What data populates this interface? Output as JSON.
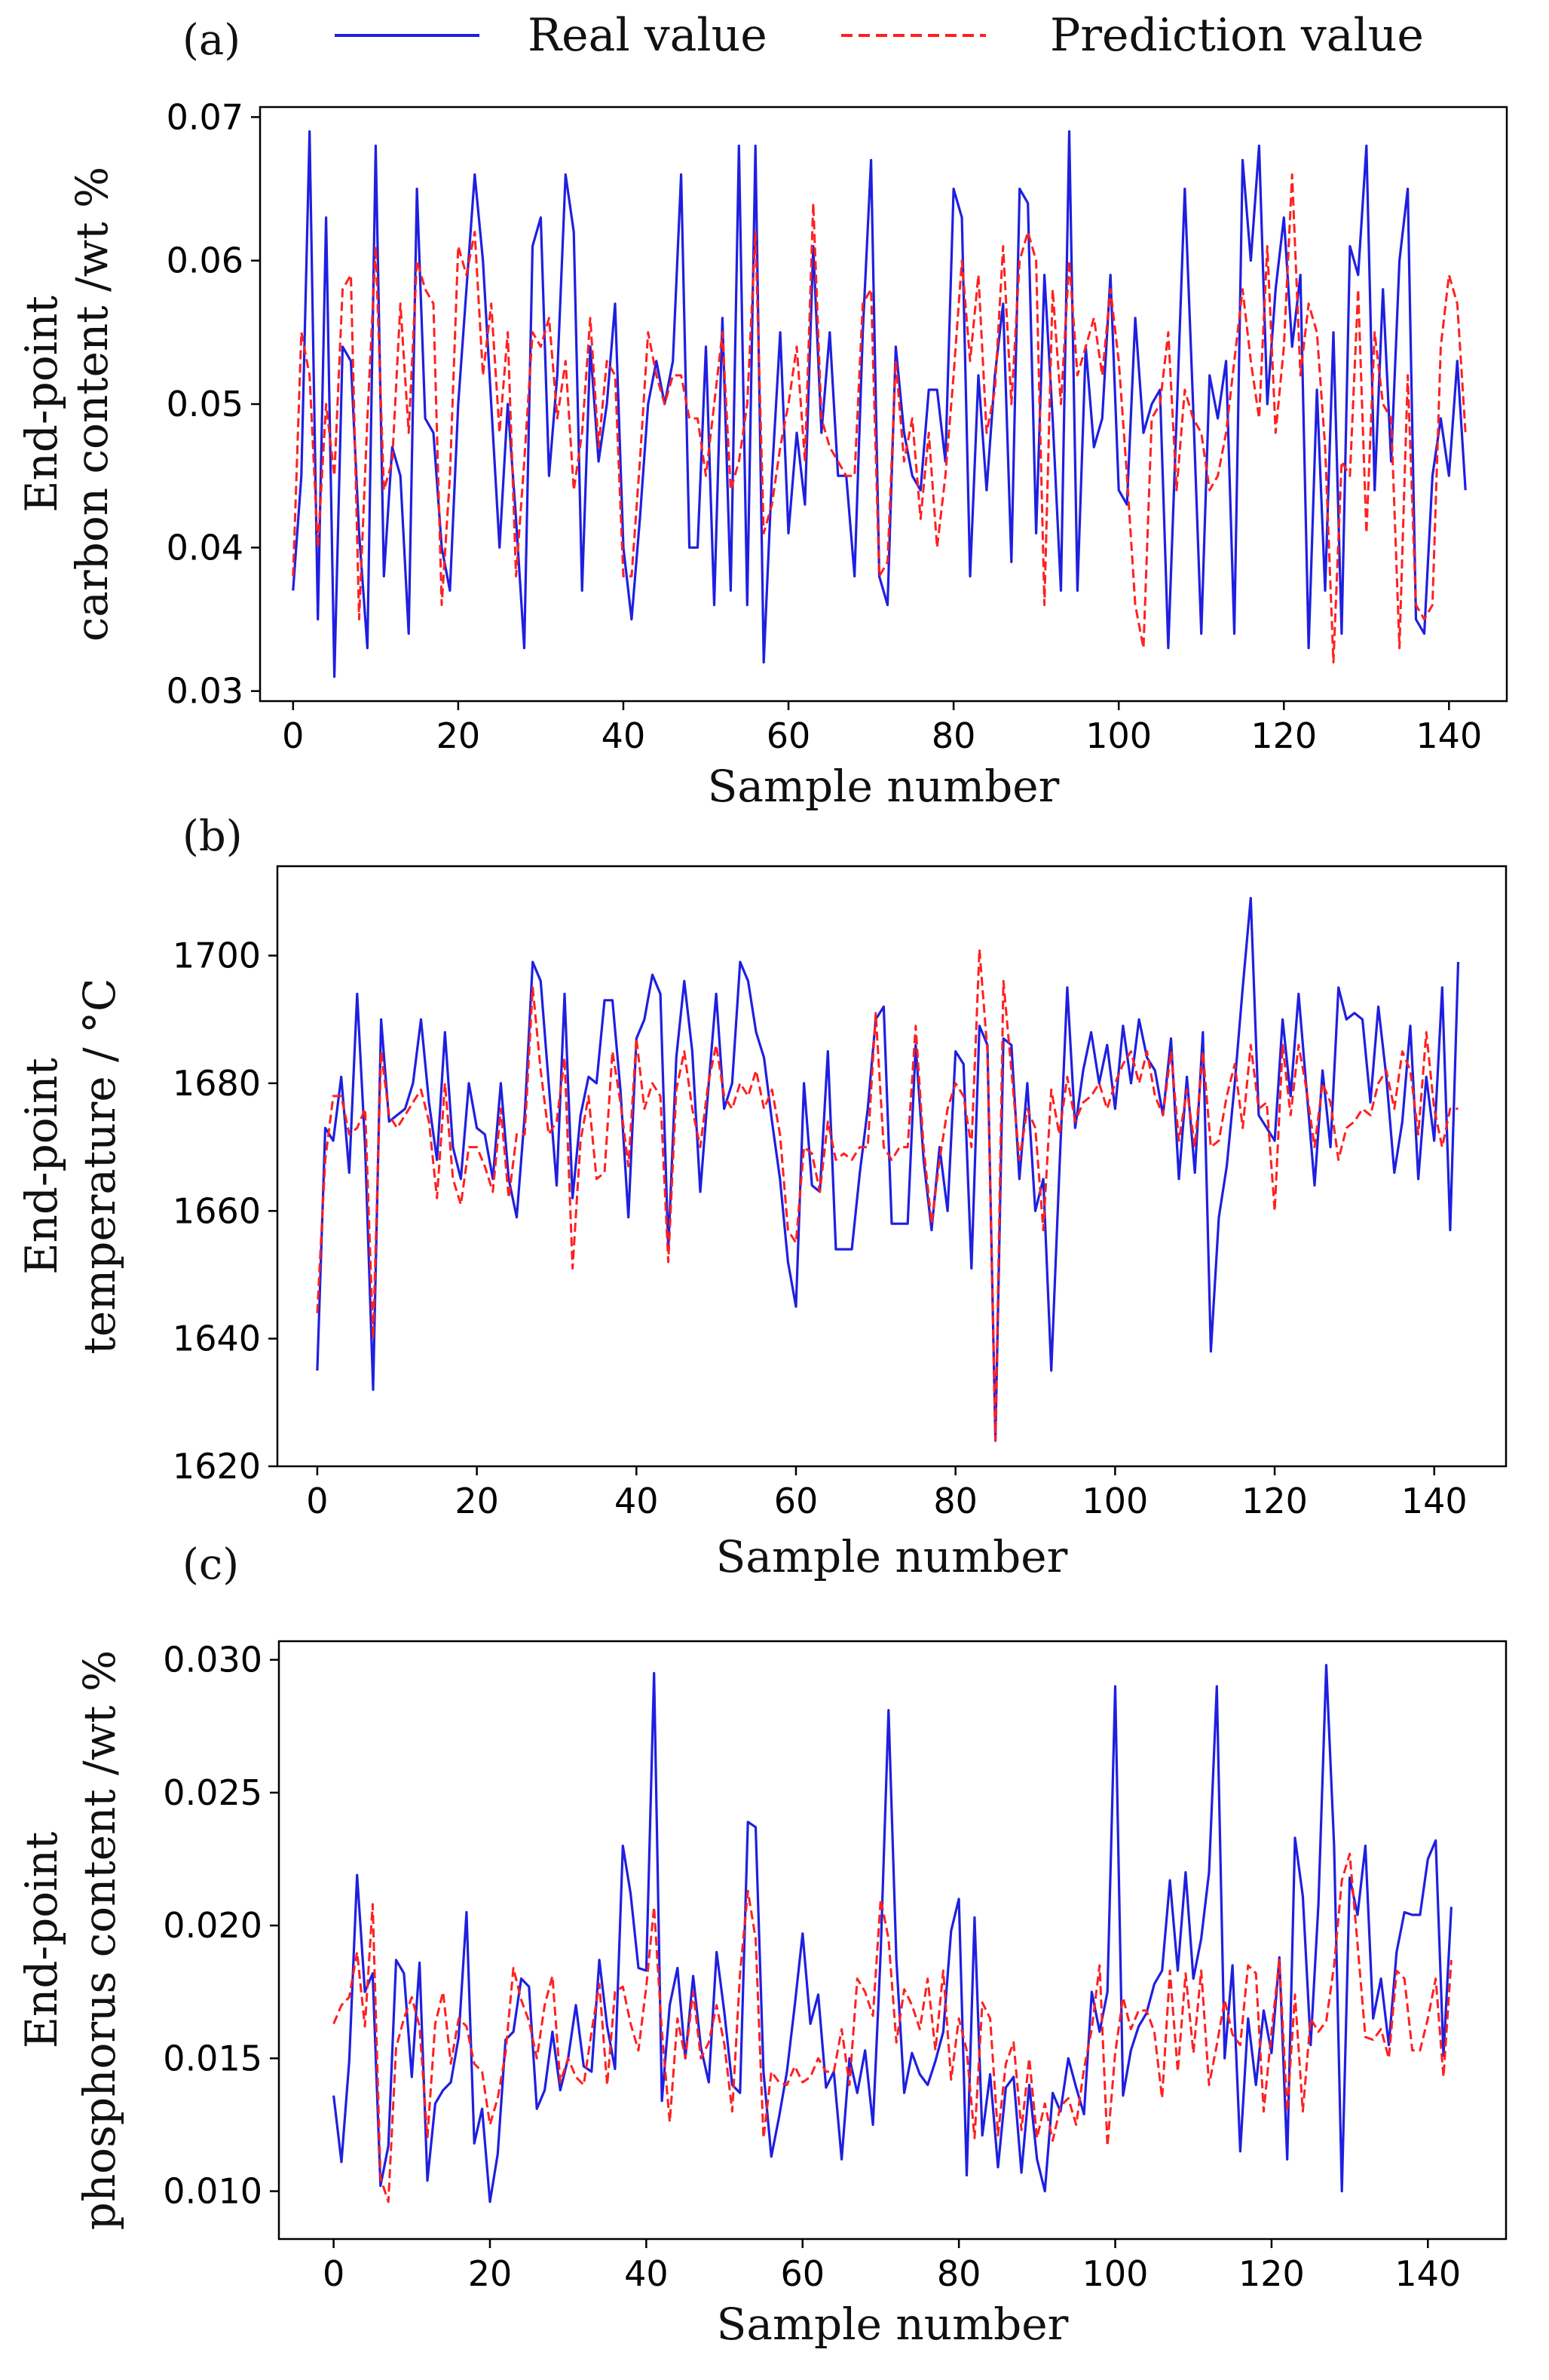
{
  "legend": {
    "real_label": "Real value",
    "pred_label": "Prediction value",
    "real_color": "#1f1fe0",
    "pred_color": "#ff2020"
  },
  "chart_data": [
    {
      "id": "a",
      "type": "line",
      "panel_label": "(a)",
      "xlabel": "Sample number",
      "ylabel_lines": [
        "End-point",
        "carbon content /wt %"
      ],
      "xlim": [
        -4,
        147
      ],
      "ylim": [
        0.0293,
        0.0707
      ],
      "xticks": [
        0,
        20,
        40,
        60,
        80,
        100,
        120,
        140
      ],
      "xtick_labels": [
        "0",
        "20",
        "40",
        "60",
        "80",
        "100",
        "120",
        "140"
      ],
      "yticks": [
        0.03,
        0.04,
        0.05,
        0.06,
        0.07
      ],
      "ytick_labels": [
        "0.03",
        "0.04",
        "0.05",
        "0.06",
        "0.07"
      ],
      "x_start": 0,
      "series": [
        {
          "name": "Real value",
          "values": [
            0.037,
            0.045,
            0.069,
            0.035,
            0.063,
            0.031,
            0.054,
            0.053,
            0.041,
            0.033,
            0.068,
            0.038,
            0.047,
            0.045,
            0.034,
            0.065,
            0.049,
            0.048,
            0.04,
            0.037,
            0.05,
            0.058,
            0.066,
            0.06,
            0.05,
            0.04,
            0.05,
            0.042,
            0.033,
            0.061,
            0.063,
            0.045,
            0.052,
            0.066,
            0.062,
            0.037,
            0.054,
            0.046,
            0.05,
            0.057,
            0.04,
            0.035,
            0.042,
            0.05,
            0.053,
            0.05,
            0.053,
            0.066,
            0.04,
            0.04,
            0.054,
            0.036,
            0.056,
            0.037,
            0.068,
            0.036,
            0.068,
            0.032,
            0.045,
            0.055,
            0.041,
            0.048,
            0.043,
            0.061,
            0.048,
            0.055,
            0.045,
            0.045,
            0.038,
            0.055,
            0.067,
            0.038,
            0.036,
            0.054,
            0.048,
            0.045,
            0.044,
            0.051,
            0.051,
            0.046,
            0.065,
            0.063,
            0.038,
            0.052,
            0.044,
            0.052,
            0.057,
            0.039,
            0.065,
            0.064,
            0.041,
            0.059,
            0.049,
            0.037,
            0.069,
            0.037,
            0.054,
            0.047,
            0.049,
            0.059,
            0.044,
            0.043,
            0.056,
            0.048,
            0.05,
            0.051,
            0.033,
            0.049,
            0.065,
            0.05,
            0.034,
            0.052,
            0.049,
            0.053,
            0.034,
            0.067,
            0.06,
            0.068,
            0.05,
            0.058,
            0.063,
            0.054,
            0.059,
            0.033,
            0.051,
            0.037,
            0.055,
            0.034,
            0.061,
            0.059,
            0.068,
            0.044,
            0.058,
            0.046,
            0.06,
            0.065,
            0.035,
            0.034,
            0.045,
            0.049,
            0.045,
            0.053,
            0.044
          ]
        },
        {
          "name": "Prediction value",
          "values": [
            0.038,
            0.055,
            0.052,
            0.04,
            0.05,
            0.045,
            0.058,
            0.059,
            0.035,
            0.049,
            0.061,
            0.044,
            0.046,
            0.057,
            0.048,
            0.06,
            0.058,
            0.057,
            0.036,
            0.045,
            0.061,
            0.059,
            0.062,
            0.052,
            0.057,
            0.048,
            0.055,
            0.038,
            0.046,
            0.055,
            0.054,
            0.056,
            0.049,
            0.053,
            0.044,
            0.048,
            0.056,
            0.047,
            0.053,
            0.052,
            0.038,
            0.038,
            0.046,
            0.055,
            0.052,
            0.05,
            0.052,
            0.052,
            0.049,
            0.049,
            0.045,
            0.05,
            0.055,
            0.044,
            0.046,
            0.05,
            0.062,
            0.041,
            0.043,
            0.047,
            0.05,
            0.054,
            0.046,
            0.064,
            0.049,
            0.047,
            0.046,
            0.045,
            0.045,
            0.057,
            0.058,
            0.038,
            0.039,
            0.053,
            0.046,
            0.049,
            0.042,
            0.048,
            0.04,
            0.045,
            0.052,
            0.06,
            0.053,
            0.059,
            0.048,
            0.051,
            0.061,
            0.05,
            0.06,
            0.062,
            0.06,
            0.036,
            0.058,
            0.05,
            0.06,
            0.052,
            0.054,
            0.056,
            0.052,
            0.058,
            0.053,
            0.045,
            0.036,
            0.033,
            0.049,
            0.05,
            0.055,
            0.044,
            0.051,
            0.049,
            0.048,
            0.044,
            0.045,
            0.048,
            0.053,
            0.058,
            0.053,
            0.049,
            0.061,
            0.048,
            0.054,
            0.066,
            0.052,
            0.057,
            0.055,
            0.047,
            0.032,
            0.046,
            0.045,
            0.058,
            0.041,
            0.055,
            0.05,
            0.049,
            0.033,
            0.052,
            0.036,
            0.035,
            0.036,
            0.054,
            0.059,
            0.057,
            0.048
          ]
        }
      ]
    },
    {
      "id": "b",
      "type": "line",
      "panel_label": "(b)",
      "xlabel": "Sample number",
      "ylabel_lines": [
        "End-point",
        "temperature / °C"
      ],
      "xlim": [
        -5,
        149
      ],
      "ylim": [
        1620,
        1714
      ],
      "xticks": [
        0,
        20,
        40,
        60,
        80,
        100,
        120,
        140
      ],
      "xtick_labels": [
        "0",
        "20",
        "40",
        "60",
        "80",
        "100",
        "120",
        "140"
      ],
      "yticks": [
        1620,
        1640,
        1660,
        1680,
        1700
      ],
      "ytick_labels": [
        "1620",
        "1640",
        "1660",
        "1680",
        "1700"
      ],
      "x_start": 0,
      "series": [
        {
          "name": "Real value",
          "values": [
            1635,
            1673,
            1671,
            1681,
            1666,
            1694,
            1670,
            1632,
            1690,
            1674,
            1675,
            1676,
            1680,
            1690,
            1677,
            1668,
            1688,
            1670,
            1665,
            1680,
            1673,
            1672,
            1665,
            1680,
            1665,
            1659,
            1675,
            1699,
            1696,
            1680,
            1664,
            1694,
            1662,
            1675,
            1681,
            1680,
            1693,
            1693,
            1679,
            1659,
            1687,
            1690,
            1697,
            1694,
            1654,
            1684,
            1696,
            1685,
            1663,
            1679,
            1694,
            1676,
            1680,
            1699,
            1696,
            1688,
            1684,
            1674,
            1665,
            1652,
            1645,
            1680,
            1664,
            1663,
            1685,
            1654,
            1654,
            1654,
            1666,
            1676,
            1690,
            1692,
            1658,
            1658,
            1658,
            1686,
            1668,
            1657,
            1670,
            1660,
            1685,
            1683,
            1651,
            1689,
            1686,
            1624,
            1687,
            1686,
            1665,
            1680,
            1660,
            1665,
            1635,
            1666,
            1695,
            1673,
            1682,
            1688,
            1680,
            1686,
            1676,
            1689,
            1680,
            1690,
            1684,
            1682,
            1675,
            1687,
            1665,
            1681,
            1666,
            1688,
            1638,
            1659,
            1667,
            1680,
            1695,
            1709,
            1675,
            1673,
            1671,
            1690,
            1678,
            1694,
            1679,
            1664,
            1682,
            1670,
            1695,
            1690,
            1691,
            1690,
            1677,
            1692,
            1681,
            1666,
            1674,
            1689,
            1665,
            1681,
            1671,
            1695,
            1657,
            1699
          ]
        },
        {
          "name": "Prediction value",
          "values": [
            1644,
            1668,
            1678,
            1678,
            1672,
            1673,
            1676,
            1640,
            1685,
            1675,
            1673,
            1675,
            1677,
            1679,
            1674,
            1662,
            1680,
            1665,
            1661,
            1670,
            1670,
            1667,
            1663,
            1676,
            1662,
            1672,
            1672,
            1695,
            1682,
            1672,
            1674,
            1684,
            1651,
            1671,
            1678,
            1665,
            1666,
            1685,
            1677,
            1667,
            1687,
            1676,
            1680,
            1678,
            1652,
            1679,
            1685,
            1676,
            1670,
            1680,
            1686,
            1678,
            1676,
            1680,
            1678,
            1682,
            1676,
            1679,
            1672,
            1657,
            1655,
            1670,
            1669,
            1663,
            1674,
            1668,
            1669,
            1668,
            1670,
            1670,
            1691,
            1670,
            1668,
            1670,
            1670,
            1689,
            1670,
            1658,
            1668,
            1676,
            1680,
            1678,
            1670,
            1701,
            1685,
            1624,
            1696,
            1682,
            1668,
            1676,
            1673,
            1657,
            1679,
            1672,
            1681,
            1674,
            1677,
            1678,
            1680,
            1676,
            1680,
            1683,
            1685,
            1680,
            1685,
            1678,
            1675,
            1685,
            1671,
            1679,
            1670,
            1685,
            1670,
            1671,
            1678,
            1683,
            1673,
            1686,
            1676,
            1677,
            1660,
            1686,
            1675,
            1686,
            1679,
            1670,
            1680,
            1677,
            1668,
            1673,
            1674,
            1676,
            1675,
            1680,
            1682,
            1676,
            1685,
            1682,
            1672,
            1688,
            1676,
            1670,
            1676,
            1676
          ]
        }
      ]
    },
    {
      "id": "c",
      "type": "line",
      "panel_label": "(c)",
      "xlabel": "Sample number",
      "ylabel_lines": [
        "End-point",
        "phosphorus content /wt %"
      ],
      "xlim": [
        -7,
        150
      ],
      "ylim": [
        0.0082,
        0.0307
      ],
      "xticks": [
        0,
        20,
        40,
        60,
        80,
        100,
        120,
        140
      ],
      "xtick_labels": [
        "0",
        "20",
        "40",
        "60",
        "80",
        "100",
        "120",
        "140"
      ],
      "yticks": [
        0.01,
        0.015,
        0.02,
        0.025,
        0.03
      ],
      "ytick_labels": [
        "0.010",
        "0.015",
        "0.020",
        "0.025",
        "0.030"
      ],
      "x_start": 0,
      "series": [
        {
          "name": "Real value",
          "values": [
            0.0136,
            0.0111,
            0.0149,
            0.0219,
            0.0175,
            0.0182,
            0.0102,
            0.0117,
            0.0187,
            0.0182,
            0.0143,
            0.0186,
            0.0104,
            0.0133,
            0.0138,
            0.0141,
            0.0158,
            0.0205,
            0.0118,
            0.0131,
            0.0096,
            0.0114,
            0.0157,
            0.016,
            0.018,
            0.0177,
            0.0131,
            0.0138,
            0.016,
            0.0138,
            0.015,
            0.017,
            0.0147,
            0.0145,
            0.0187,
            0.0162,
            0.0146,
            0.023,
            0.0212,
            0.0184,
            0.0183,
            0.0295,
            0.0134,
            0.017,
            0.0184,
            0.015,
            0.0181,
            0.0154,
            0.0141,
            0.019,
            0.0167,
            0.014,
            0.0137,
            0.0239,
            0.0237,
            0.0145,
            0.0113,
            0.0128,
            0.0145,
            0.017,
            0.0197,
            0.0163,
            0.0174,
            0.0139,
            0.0145,
            0.0112,
            0.015,
            0.0137,
            0.0153,
            0.0125,
            0.019,
            0.0281,
            0.0187,
            0.0137,
            0.0152,
            0.0144,
            0.014,
            0.0149,
            0.016,
            0.0198,
            0.021,
            0.0106,
            0.0203,
            0.0121,
            0.0144,
            0.0109,
            0.0139,
            0.0143,
            0.0107,
            0.014,
            0.0112,
            0.01,
            0.0137,
            0.013,
            0.015,
            0.0139,
            0.0129,
            0.0175,
            0.016,
            0.0175,
            0.029,
            0.0136,
            0.0153,
            0.0162,
            0.0167,
            0.0178,
            0.0183,
            0.0217,
            0.0183,
            0.022,
            0.018,
            0.0195,
            0.022,
            0.029,
            0.015,
            0.0185,
            0.0115,
            0.0165,
            0.014,
            0.0168,
            0.0152,
            0.0188,
            0.0112,
            0.0233,
            0.0211,
            0.0155,
            0.0208,
            0.0298,
            0.023,
            0.01,
            0.0218,
            0.0204,
            0.023,
            0.0165,
            0.018,
            0.0155,
            0.019,
            0.0205,
            0.0204,
            0.0204,
            0.0225,
            0.0232,
            0.0151,
            0.0207
          ]
        },
        {
          "name": "Prediction value",
          "values": [
            0.0163,
            0.017,
            0.0173,
            0.019,
            0.0162,
            0.0208,
            0.0105,
            0.0096,
            0.0154,
            0.0165,
            0.0173,
            0.0162,
            0.012,
            0.0163,
            0.0175,
            0.0148,
            0.0165,
            0.0162,
            0.0148,
            0.0145,
            0.0125,
            0.0135,
            0.0152,
            0.0184,
            0.0172,
            0.0164,
            0.015,
            0.017,
            0.0181,
            0.0141,
            0.015,
            0.0143,
            0.014,
            0.016,
            0.0178,
            0.014,
            0.0175,
            0.0177,
            0.0163,
            0.0153,
            0.0177,
            0.0207,
            0.016,
            0.0126,
            0.0165,
            0.015,
            0.0175,
            0.015,
            0.0156,
            0.017,
            0.0155,
            0.013,
            0.0182,
            0.0213,
            0.0195,
            0.012,
            0.0145,
            0.0141,
            0.014,
            0.0147,
            0.0141,
            0.0143,
            0.015,
            0.0145,
            0.0145,
            0.0161,
            0.014,
            0.018,
            0.0175,
            0.0166,
            0.021,
            0.0195,
            0.0156,
            0.0176,
            0.017,
            0.0161,
            0.018,
            0.0153,
            0.0183,
            0.0142,
            0.0165,
            0.0153,
            0.012,
            0.0171,
            0.0165,
            0.0121,
            0.0148,
            0.0156,
            0.0123,
            0.015,
            0.012,
            0.0133,
            0.0119,
            0.0132,
            0.0135,
            0.0125,
            0.0146,
            0.0161,
            0.0185,
            0.0117,
            0.0152,
            0.0173,
            0.0161,
            0.0168,
            0.0168,
            0.016,
            0.0135,
            0.0183,
            0.0145,
            0.0182,
            0.0152,
            0.0183,
            0.014,
            0.0155,
            0.0172,
            0.0159,
            0.0155,
            0.0185,
            0.0182,
            0.013,
            0.016,
            0.0187,
            0.013,
            0.0174,
            0.013,
            0.0165,
            0.016,
            0.0164,
            0.0185,
            0.0217,
            0.0227,
            0.0193,
            0.0158,
            0.0157,
            0.0161,
            0.015,
            0.0183,
            0.018,
            0.0153,
            0.0153,
            0.0165,
            0.018,
            0.0143,
            0.0187
          ]
        }
      ]
    }
  ]
}
